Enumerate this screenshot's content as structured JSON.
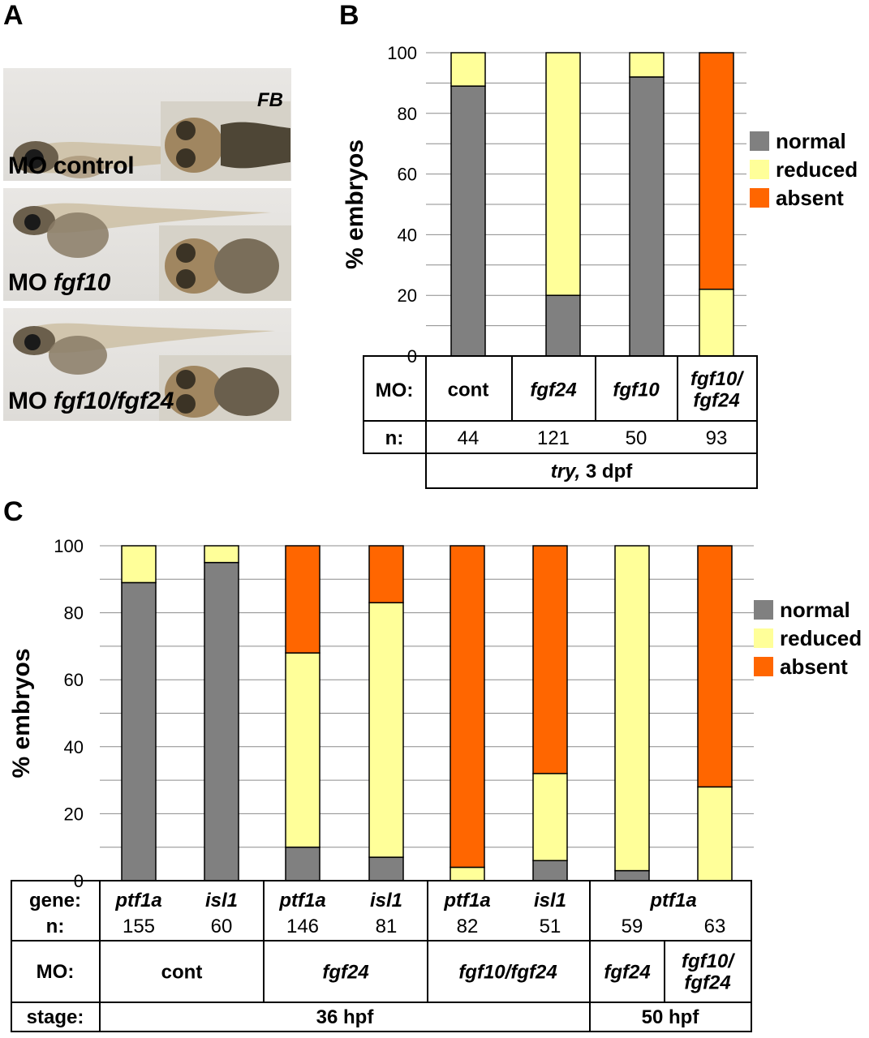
{
  "panel_a": {
    "letter": "A",
    "photos": [
      {
        "label_prefix": "MO",
        "label_gene": "control",
        "gene_italic": false
      },
      {
        "label_prefix": "MO",
        "label_gene": "fgf10",
        "gene_italic": true
      },
      {
        "label_prefix": "MO",
        "label_gene": "fgf10/fgf24",
        "gene_italic": true
      }
    ],
    "fb_label": "FB"
  },
  "panel_b": {
    "letter": "B",
    "table": {
      "mo_header": "MO:",
      "n_header": "n:",
      "mo_labels": [
        "cont",
        "fgf24",
        "fgf10",
        "fgf10/\nfgf24"
      ],
      "mo_italic": [
        false,
        true,
        true,
        true
      ],
      "n_values": [
        "44",
        "121",
        "50",
        "93"
      ],
      "footer_italic": "try,",
      "footer_rest": " 3 dpf"
    }
  },
  "panel_c": {
    "letter": "C",
    "table": {
      "gene_header": "gene:",
      "n_header": "n:",
      "mo_header": "MO:",
      "stage_header": "stage:",
      "genes": [
        "ptf1a",
        "isl1",
        "ptf1a",
        "isl1",
        "ptf1a",
        "isl1",
        "ptf1a",
        ""
      ],
      "n_values": [
        "155",
        "60",
        "146",
        "81",
        "82",
        "51",
        "59",
        "63"
      ],
      "mo_groups": [
        {
          "label": "cont",
          "italic": false
        },
        {
          "label": "fgf24",
          "italic": true
        },
        {
          "label": "fgf10/fgf24",
          "italic": true
        },
        {
          "label": "fgf24",
          "italic": true
        },
        {
          "label": "fgf10/\nfgf24",
          "italic": true
        }
      ],
      "stages": [
        "36 hpf",
        "50 hpf"
      ]
    }
  },
  "chart_data": [
    {
      "type": "bar",
      "stacked": true,
      "ylabel": "% embryos",
      "ylim": [
        0,
        100
      ],
      "yticks": [
        0,
        20,
        40,
        60,
        80,
        100
      ],
      "grid": true,
      "legend_position": "right",
      "categories": [
        "cont",
        "fgf24",
        "fgf10",
        "fgf10/fgf24"
      ],
      "series": [
        {
          "name": "normal",
          "color": "#808080",
          "values": [
            89,
            20,
            92,
            0
          ]
        },
        {
          "name": "reduced",
          "color": "#ffff99",
          "values": [
            11,
            80,
            8,
            22
          ]
        },
        {
          "name": "absent",
          "color": "#ff6600",
          "values": [
            0,
            0,
            0,
            78
          ]
        }
      ]
    },
    {
      "type": "bar",
      "stacked": true,
      "ylabel": "% embryos",
      "ylim": [
        0,
        100
      ],
      "yticks": [
        0,
        20,
        40,
        60,
        80,
        100
      ],
      "grid": true,
      "legend_position": "right",
      "categories": [
        "ptf1a cont 36 hpf",
        "isl1 cont 36 hpf",
        "ptf1a fgf24 36 hpf",
        "isl1 fgf24 36 hpf",
        "ptf1a fgf10/fgf24 36 hpf",
        "isl1 fgf10/fgf24 36 hpf",
        "ptf1a fgf24 50 hpf",
        "ptf1a fgf10/fgf24 50 hpf"
      ],
      "series": [
        {
          "name": "normal",
          "color": "#808080",
          "values": [
            89,
            95,
            10,
            7,
            0,
            6,
            3,
            0
          ]
        },
        {
          "name": "reduced",
          "color": "#ffff99",
          "values": [
            11,
            5,
            58,
            76,
            4,
            26,
            97,
            28
          ]
        },
        {
          "name": "absent",
          "color": "#ff6600",
          "values": [
            0,
            0,
            32,
            17,
            96,
            68,
            0,
            72
          ]
        }
      ]
    }
  ]
}
